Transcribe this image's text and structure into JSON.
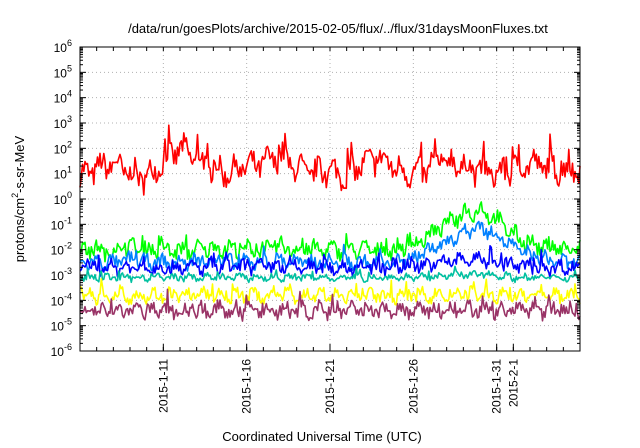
{
  "chart_data": {
    "type": "line",
    "title": "/data/run/goesPlots/archive/2015-02-05/flux/../flux/31daysMoonFluxes.txt",
    "xlabel": "Coordinated Universal Time (UTC)",
    "ylabel": "protons/cm2-s-sr-MeV",
    "ylabel_parts": {
      "base": "protons/cm",
      "sup": "2",
      "rest": "-s-sr-MeV"
    },
    "y_scale": "log",
    "ylim": [
      1e-06,
      1000000.0
    ],
    "y_ticks": [
      {
        "base": "10",
        "exp": "-6",
        "value": 1e-06
      },
      {
        "base": "10",
        "exp": "-5",
        "value": 1e-05
      },
      {
        "base": "10",
        "exp": "-4",
        "value": 0.0001
      },
      {
        "base": "10",
        "exp": "-3",
        "value": 0.001
      },
      {
        "base": "10",
        "exp": "-2",
        "value": 0.01
      },
      {
        "base": "10",
        "exp": "-1",
        "value": 0.1
      },
      {
        "base": "10",
        "exp": "0",
        "value": 1
      },
      {
        "base": "10",
        "exp": "1",
        "value": 10
      },
      {
        "base": "10",
        "exp": "2",
        "value": 100
      },
      {
        "base": "10",
        "exp": "3",
        "value": 1000
      },
      {
        "base": "10",
        "exp": "4",
        "value": 10000
      },
      {
        "base": "10",
        "exp": "5",
        "value": 100000
      },
      {
        "base": "10",
        "exp": "6",
        "value": 1000000
      }
    ],
    "xlim": [
      "2015-01-06",
      "2015-02-05"
    ],
    "x_ticks": [
      "2015-1-11",
      "2015-1-16",
      "2015-1-21",
      "2015-1-26",
      "2015-1-31",
      "2015-2-1"
    ],
    "x_tick_days": [
      5,
      10,
      15,
      20,
      25,
      26
    ],
    "x_span_days": 30,
    "grid": true,
    "legend": "none",
    "series": [
      {
        "color": "#ff0000",
        "baseline": [
          0.9,
          1.2,
          1.4,
          1.0,
          0.8,
          1.5,
          2.0,
          1.6,
          1.2,
          1.0,
          1.3,
          1.4,
          1.7,
          1.2,
          1.0,
          1.1,
          0.9,
          1.4,
          1.6,
          1.2,
          1.0,
          1.2,
          1.5,
          1.3,
          1.1,
          1.0,
          1.2,
          1.4,
          1.3,
          1.1,
          1.2
        ],
        "spread": 0.55
      },
      {
        "color": "#00ff00",
        "baseline": [
          -2.0,
          -2.0,
          -2.1,
          -1.9,
          -2.0,
          -2.0,
          -2.1,
          -2.0,
          -1.9,
          -2.0,
          -2.0,
          -2.0,
          -1.9,
          -2.0,
          -2.0,
          -2.0,
          -2.0,
          -2.0,
          -2.0,
          -2.0,
          -1.8,
          -1.4,
          -1.0,
          -0.6,
          -0.4,
          -0.8,
          -1.4,
          -1.8,
          -1.9,
          -2.0,
          -2.0
        ],
        "spread": 0.35
      },
      {
        "color": "#0080ff",
        "baseline": [
          -2.5,
          -2.5,
          -2.5,
          -2.4,
          -2.5,
          -2.5,
          -2.5,
          -2.5,
          -2.4,
          -2.5,
          -2.5,
          -2.5,
          -2.4,
          -2.5,
          -2.5,
          -2.5,
          -2.5,
          -2.5,
          -2.5,
          -2.5,
          -2.3,
          -2.0,
          -1.7,
          -1.3,
          -1.1,
          -1.4,
          -1.9,
          -2.2,
          -2.4,
          -2.5,
          -2.5
        ],
        "spread": 0.3
      },
      {
        "color": "#0000ff",
        "baseline": [
          -2.7,
          -2.7,
          -2.7,
          -2.7,
          -2.7,
          -2.7,
          -2.7,
          -2.7,
          -2.7,
          -2.7,
          -2.7,
          -2.7,
          -2.7,
          -2.7,
          -2.7,
          -2.7,
          -2.7,
          -2.7,
          -2.7,
          -2.7,
          -2.6,
          -2.6,
          -2.5,
          -2.4,
          -2.4,
          -2.5,
          -2.6,
          -2.7,
          -2.7,
          -2.7,
          -2.7
        ],
        "spread": 0.3
      },
      {
        "color": "#00c0a0",
        "baseline": [
          -3.1,
          -3.1,
          -3.1,
          -3.1,
          -3.1,
          -3.1,
          -3.1,
          -3.1,
          -3.1,
          -3.1,
          -3.1,
          -3.1,
          -3.1,
          -3.1,
          -3.1,
          -3.1,
          -3.1,
          -3.1,
          -3.1,
          -3.1,
          -3.1,
          -3.1,
          -3.0,
          -3.0,
          -3.0,
          -3.0,
          -3.1,
          -3.1,
          -3.1,
          -3.1,
          -3.1
        ],
        "spread": 0.15
      },
      {
        "color": "#ffff00",
        "baseline": [
          -3.8,
          -3.8,
          -3.8,
          -3.8,
          -3.8,
          -3.8,
          -3.8,
          -3.8,
          -3.8,
          -3.8,
          -3.8,
          -3.8,
          -3.8,
          -3.8,
          -3.8,
          -3.8,
          -3.8,
          -3.8,
          -3.8,
          -3.8,
          -3.8,
          -3.8,
          -3.8,
          -3.8,
          -3.8,
          -3.8,
          -3.8,
          -3.8,
          -3.8,
          -3.8,
          -3.8
        ],
        "spread": 0.3
      },
      {
        "color": "#993366",
        "baseline": [
          -4.4,
          -4.4,
          -4.4,
          -4.4,
          -4.4,
          -4.4,
          -4.4,
          -4.4,
          -4.4,
          -4.4,
          -4.4,
          -4.4,
          -4.4,
          -4.4,
          -4.4,
          -4.4,
          -4.4,
          -4.4,
          -4.4,
          -4.4,
          -4.4,
          -4.4,
          -4.4,
          -4.4,
          -4.4,
          -4.4,
          -4.4,
          -4.4,
          -4.4,
          -4.4,
          -4.4
        ],
        "spread": 0.35
      }
    ]
  }
}
